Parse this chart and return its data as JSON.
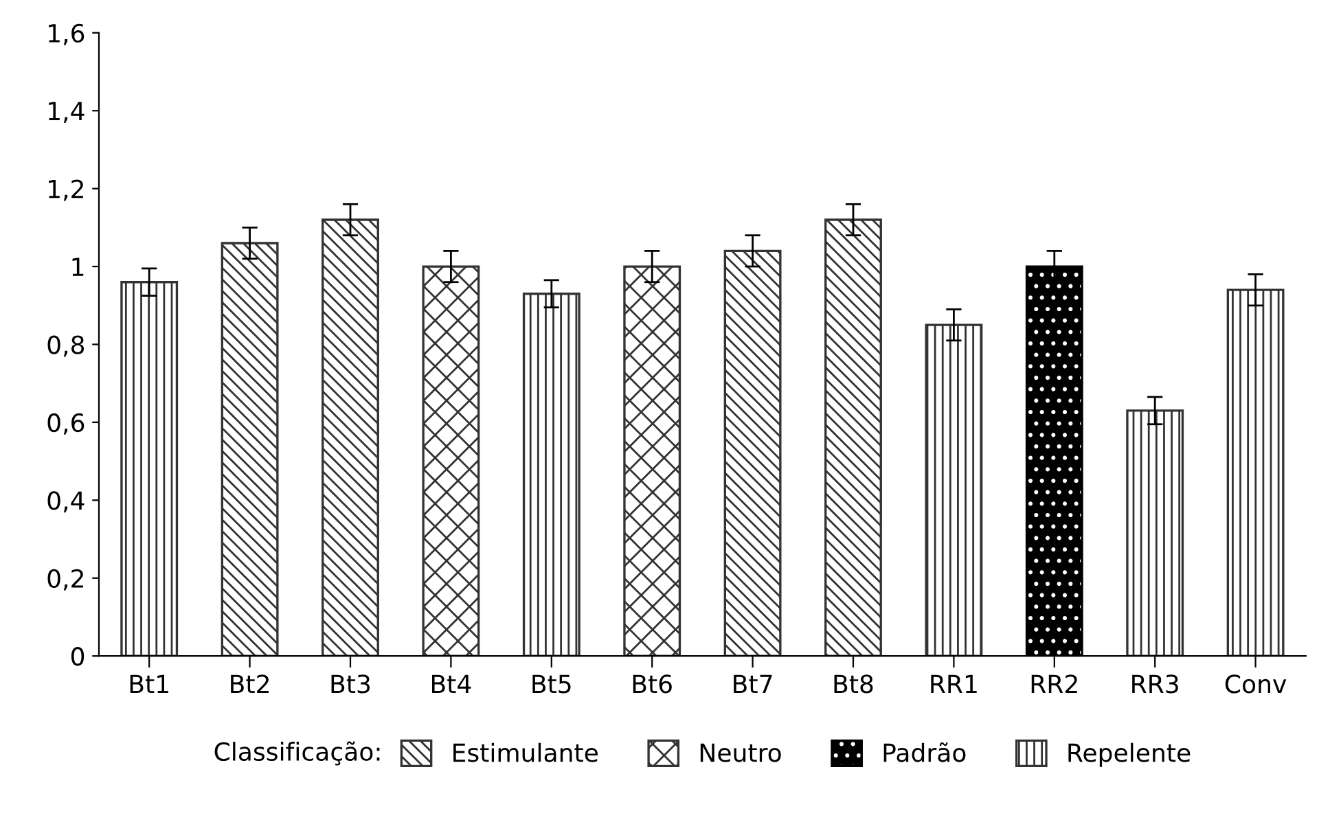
{
  "chart_data": {
    "type": "bar",
    "categories": [
      "Bt1",
      "Bt2",
      "Bt3",
      "Bt4",
      "Bt5",
      "Bt6",
      "Bt7",
      "Bt8",
      "RR1",
      "RR2",
      "RR3",
      "Conv"
    ],
    "series": [
      {
        "name": "Estimulante",
        "color": "#333333",
        "values": [
          null,
          1.06,
          1.12,
          null,
          null,
          null,
          1.04,
          1.12,
          null,
          null,
          null,
          null
        ],
        "errors": [
          null,
          0.04,
          0.04,
          null,
          null,
          null,
          0.04,
          0.04,
          null,
          null,
          null,
          null
        ]
      },
      {
        "name": "Neutro",
        "color": "#333333",
        "values": [
          null,
          null,
          null,
          1.0,
          null,
          1.0,
          null,
          null,
          null,
          null,
          null,
          null
        ],
        "errors": [
          null,
          null,
          null,
          0.04,
          null,
          0.04,
          null,
          null,
          null,
          null,
          null,
          null
        ]
      },
      {
        "name": "Padrão",
        "color": "#000000",
        "values": [
          null,
          null,
          null,
          null,
          null,
          null,
          null,
          null,
          null,
          1.0,
          null,
          null
        ],
        "errors": [
          null,
          null,
          null,
          null,
          null,
          null,
          null,
          null,
          null,
          0.04,
          null,
          null
        ]
      },
      {
        "name": "Repelente",
        "color": "#333333",
        "values": [
          0.96,
          null,
          null,
          null,
          0.93,
          null,
          null,
          null,
          0.85,
          null,
          0.63,
          0.94
        ],
        "errors": [
          0.035,
          null,
          null,
          null,
          0.035,
          null,
          null,
          null,
          0.04,
          null,
          0.035,
          0.04
        ]
      }
    ],
    "ylim": [
      0,
      1.6
    ],
    "yticks": [
      {
        "value": 0,
        "label": "0"
      },
      {
        "value": 0.2,
        "label": "0,2"
      },
      {
        "value": 0.4,
        "label": "0,4"
      },
      {
        "value": 0.6,
        "label": "0,6"
      },
      {
        "value": 0.8,
        "label": "0,8"
      },
      {
        "value": 1,
        "label": "1"
      },
      {
        "value": 1.2,
        "label": "1,2"
      },
      {
        "value": 1.4,
        "label": "1,4"
      },
      {
        "value": 1.6,
        "label": "1,6"
      }
    ],
    "legend_title": "Classificação:",
    "legend": "bottom",
    "grid": false
  }
}
